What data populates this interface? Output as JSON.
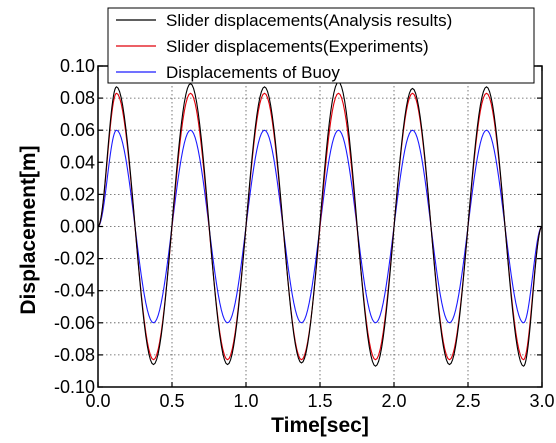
{
  "chart_data": {
    "type": "line",
    "xlabel": "Time[sec]",
    "ylabel": "Displacement[m]",
    "xlim": [
      0.0,
      3.0
    ],
    "ylim": [
      -0.1,
      0.1
    ],
    "x_ticks": [
      "0.0",
      "0.5",
      "1.0",
      "1.5",
      "2.0",
      "2.5",
      "3.0"
    ],
    "y_ticks": [
      "-0.10",
      "-0.08",
      "-0.06",
      "-0.04",
      "-0.02",
      "0.00",
      "0.02",
      "0.04",
      "0.06",
      "0.08",
      "0.10"
    ],
    "grid": true,
    "legend_position": "top",
    "period_sec": 0.5,
    "series": [
      {
        "name": "Slider displacements(Analysis results)",
        "color": "#000000",
        "peak_times": [
          0.125,
          0.625,
          1.125,
          1.625,
          2.125,
          2.625
        ],
        "peak_values": [
          0.087,
          0.089,
          0.087,
          0.09,
          0.086,
          0.087
        ],
        "trough_times": [
          0.375,
          0.875,
          1.375,
          1.875,
          2.375,
          2.875
        ],
        "trough_values": [
          -0.086,
          -0.086,
          -0.085,
          -0.087,
          -0.086,
          -0.087
        ]
      },
      {
        "name": "Slider displacements(Experiments)",
        "color": "#e0000a",
        "peak_times": [
          0.125,
          0.625,
          1.125,
          1.625,
          2.125,
          2.625
        ],
        "peak_values": [
          0.083,
          0.083,
          0.083,
          0.083,
          0.083,
          0.083
        ],
        "trough_times": [
          0.375,
          0.875,
          1.375,
          1.875,
          2.375,
          2.875
        ],
        "trough_values": [
          -0.083,
          -0.083,
          -0.083,
          -0.083,
          -0.083,
          -0.083
        ]
      },
      {
        "name": "Displacements of Buoy",
        "color": "#1c1cff",
        "peak_times": [
          0.125,
          0.625,
          1.125,
          1.625,
          2.125,
          2.625
        ],
        "peak_values": [
          0.06,
          0.06,
          0.06,
          0.06,
          0.06,
          0.06
        ],
        "trough_times": [
          0.375,
          0.875,
          1.375,
          1.875,
          2.375,
          2.875
        ],
        "trough_values": [
          -0.06,
          -0.06,
          -0.06,
          -0.06,
          -0.06,
          -0.06
        ]
      }
    ]
  }
}
